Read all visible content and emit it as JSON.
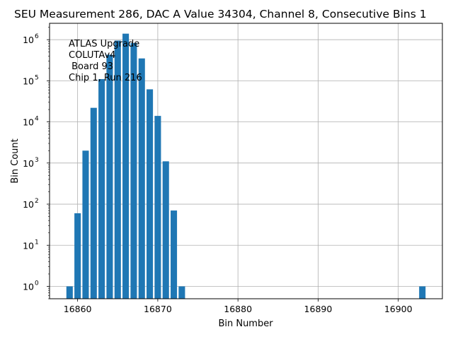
{
  "chart_data": {
    "type": "bar",
    "title": "SEU Measurement 286, DAC A Value 34304, Channel 8, Consecutive Bins 1",
    "xlabel": "Bin Number",
    "ylabel": "Bin Count",
    "yscale": "log",
    "xlim": [
      16856.5,
      16905.5
    ],
    "ylim": [
      0.5,
      2500000
    ],
    "x_ticks": [
      16860,
      16870,
      16880,
      16890,
      16900
    ],
    "x_tick_labels": [
      "16860",
      "16870",
      "16880",
      "16890",
      "16900"
    ],
    "y_ticks": [
      1,
      10,
      100,
      1000,
      10000,
      100000,
      1000000
    ],
    "y_tick_labels": [
      {
        "base": "10",
        "exp": "0"
      },
      {
        "base": "10",
        "exp": "1"
      },
      {
        "base": "10",
        "exp": "2"
      },
      {
        "base": "10",
        "exp": "3"
      },
      {
        "base": "10",
        "exp": "4"
      },
      {
        "base": "10",
        "exp": "5"
      },
      {
        "base": "10",
        "exp": "6"
      }
    ],
    "grid": true,
    "bar_color": "#1f77b4",
    "x": [
      16859,
      16860,
      16861,
      16862,
      16863,
      16864,
      16865,
      16866,
      16867,
      16868,
      16869,
      16870,
      16871,
      16872,
      16873,
      16903
    ],
    "values": [
      1,
      60,
      2000,
      22000,
      110000,
      430000,
      950000,
      1400000,
      830000,
      350000,
      62000,
      14000,
      1100,
      70,
      1,
      1
    ],
    "annotation_lines": [
      "ATLAS Upgrade",
      "COLUTAv4",
      " Board 93",
      "Chip 1, Run 216"
    ]
  }
}
